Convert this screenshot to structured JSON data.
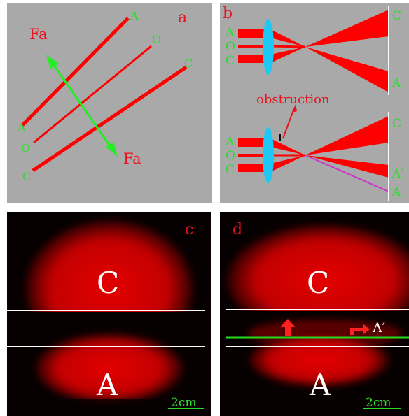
{
  "panel_a": {
    "letter": "a",
    "force_label_top": "Fa",
    "force_label_bottom": "Fa",
    "line_labels_top": [
      "A",
      "O",
      "C"
    ],
    "line_labels_bottom": [
      "A",
      "O",
      "C"
    ]
  },
  "panel_b": {
    "letter": "b",
    "input_labels_top": [
      "A",
      "O",
      "C"
    ],
    "output_labels_top": [
      "C",
      "A"
    ],
    "obstruction_label": "obstruction",
    "input_labels_bottom": [
      "A",
      "O",
      "C"
    ],
    "output_labels_bottom": [
      "C",
      "A′",
      "A"
    ]
  },
  "panel_c": {
    "letter": "c",
    "upper_label": "C",
    "lower_label": "A",
    "scale_label": "2cm"
  },
  "panel_d": {
    "letter": "d",
    "upper_label": "C",
    "lower_label": "A",
    "shifted_label": "A′",
    "scale_label": "2cm"
  },
  "colors": {
    "panel_bg": "#a9a9a9",
    "beam": "#ff0000",
    "label_red": "#e8141e",
    "label_green": "#2ddb2d",
    "arrow_green": "#22ee22",
    "lens": "#1ec8f5",
    "deflected_ray": "#cc33cc",
    "photo_bg": "#070000"
  }
}
